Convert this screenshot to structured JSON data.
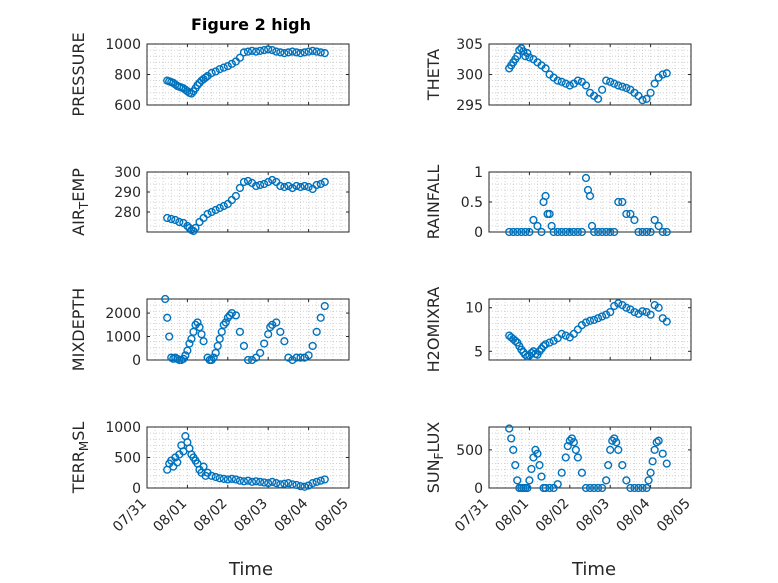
{
  "figure": {
    "title": "Figure 2 high",
    "xlabel": "Time",
    "x_ticks": [
      "07/31",
      "08/01",
      "08/02",
      "08/03",
      "08/04",
      "08/05"
    ],
    "marker_color": "#0072BD",
    "grid": "minor dotted"
  },
  "chart_data": [
    {
      "type": "scatter",
      "ylabel": "PRESSURE",
      "ylim": [
        600,
        1000
      ],
      "y_ticks": [
        "600",
        "800",
        "1000"
      ],
      "xlim": [
        0,
        5
      ],
      "series": [
        {
          "x": [
            0.5,
            0.55,
            0.6,
            0.65,
            0.7,
            0.75,
            0.8,
            0.85,
            0.9,
            0.95,
            1.0,
            1.05,
            1.1,
            1.15,
            1.2,
            1.25,
            1.3,
            1.35,
            1.4,
            1.45,
            1.5,
            1.6,
            1.7,
            1.8,
            1.9,
            2.0,
            2.1,
            2.2,
            2.3,
            2.4,
            2.5,
            2.6,
            2.7,
            2.8,
            2.9,
            3.0,
            3.1,
            3.2,
            3.3,
            3.4,
            3.5,
            3.6,
            3.7,
            3.8,
            3.9,
            4.0,
            4.1,
            4.2,
            4.3,
            4.4
          ],
          "y": [
            760,
            755,
            750,
            745,
            735,
            725,
            720,
            715,
            710,
            700,
            690,
            680,
            675,
            690,
            710,
            730,
            745,
            760,
            770,
            780,
            790,
            810,
            820,
            835,
            845,
            855,
            870,
            885,
            910,
            945,
            950,
            955,
            950,
            955,
            960,
            965,
            960,
            950,
            945,
            940,
            945,
            950,
            945,
            940,
            945,
            950,
            955,
            950,
            945,
            940
          ]
        }
      ]
    },
    {
      "type": "scatter",
      "ylabel": "THETA",
      "ylim": [
        295,
        305
      ],
      "y_ticks": [
        "295",
        "300",
        "305"
      ],
      "xlim": [
        0,
        5
      ],
      "series": [
        {
          "x": [
            0.5,
            0.55,
            0.6,
            0.65,
            0.7,
            0.75,
            0.8,
            0.85,
            0.9,
            0.95,
            1.0,
            1.1,
            1.2,
            1.3,
            1.4,
            1.5,
            1.6,
            1.7,
            1.8,
            1.9,
            2.0,
            2.1,
            2.2,
            2.3,
            2.4,
            2.5,
            2.6,
            2.7,
            2.8,
            2.9,
            3.0,
            3.1,
            3.2,
            3.3,
            3.4,
            3.5,
            3.6,
            3.7,
            3.8,
            3.9,
            4.0,
            4.1,
            4.2,
            4.3,
            4.4
          ],
          "y": [
            301,
            301.5,
            302,
            302.5,
            303,
            304,
            304.3,
            303.8,
            303,
            303.5,
            302.8,
            302.5,
            302,
            301.5,
            301,
            300,
            299.5,
            299,
            298.8,
            298.5,
            298.2,
            298.5,
            299,
            298.8,
            298.2,
            297,
            296.5,
            296,
            297.5,
            299,
            298.8,
            298.5,
            298.2,
            298,
            297.8,
            297.5,
            297,
            296.5,
            295.8,
            296,
            297,
            298.5,
            299.5,
            300,
            300.2
          ]
        }
      ]
    },
    {
      "type": "scatter",
      "ylabel": "AIR_TEMP",
      "ylim": [
        270,
        300
      ],
      "y_ticks": [
        "280",
        "290",
        "300"
      ],
      "xlim": [
        0,
        5
      ],
      "series": [
        {
          "x": [
            0.5,
            0.6,
            0.7,
            0.8,
            0.9,
            1.0,
            1.05,
            1.1,
            1.15,
            1.2,
            1.3,
            1.4,
            1.5,
            1.6,
            1.7,
            1.8,
            1.9,
            2.0,
            2.1,
            2.2,
            2.3,
            2.4,
            2.5,
            2.6,
            2.7,
            2.8,
            2.9,
            3.0,
            3.1,
            3.2,
            3.3,
            3.4,
            3.5,
            3.6,
            3.7,
            3.8,
            3.9,
            4.0,
            4.1,
            4.2,
            4.3,
            4.4
          ],
          "y": [
            277,
            276.5,
            276,
            275,
            274.5,
            273,
            272,
            271,
            270.5,
            272,
            275,
            277,
            279,
            280,
            281,
            282,
            283,
            284,
            286,
            288,
            292,
            295,
            295.5,
            294.5,
            293,
            293.5,
            294,
            295,
            296,
            295,
            293,
            292.5,
            293,
            292,
            293,
            292.5,
            293,
            292.5,
            291.5,
            293.5,
            294,
            295
          ]
        }
      ]
    },
    {
      "type": "scatter",
      "ylabel": "RAINFALL",
      "ylim": [
        0,
        1
      ],
      "y_ticks": [
        "0",
        "0.5",
        "1"
      ],
      "xlim": [
        0,
        5
      ],
      "series": [
        {
          "x": [
            0.5,
            0.6,
            0.7,
            0.8,
            0.9,
            1.0,
            1.1,
            1.2,
            1.3,
            1.35,
            1.4,
            1.45,
            1.5,
            1.55,
            1.6,
            1.7,
            1.8,
            1.9,
            2.0,
            2.1,
            2.2,
            2.3,
            2.4,
            2.45,
            2.5,
            2.55,
            2.6,
            2.7,
            2.8,
            2.9,
            3.0,
            3.1,
            3.2,
            3.3,
            3.4,
            3.5,
            3.6,
            3.7,
            3.8,
            3.9,
            4.0,
            4.1,
            4.2,
            4.3,
            4.4
          ],
          "y": [
            0,
            0,
            0,
            0,
            0,
            0,
            0.2,
            0.1,
            0,
            0.5,
            0.6,
            0.3,
            0.3,
            0.1,
            0,
            0,
            0,
            0,
            0,
            0,
            0,
            0,
            0.9,
            0.7,
            0.6,
            0.1,
            0,
            0,
            0,
            0,
            0,
            0,
            0.5,
            0.5,
            0.3,
            0.3,
            0.2,
            0,
            0,
            0,
            0,
            0.2,
            0.1,
            0,
            0
          ]
        }
      ]
    },
    {
      "type": "scatter",
      "ylabel": "MIXDEPTH",
      "ylim": [
        0,
        2600
      ],
      "y_ticks": [
        "0",
        "1000",
        "2000"
      ],
      "xlim": [
        0,
        5
      ],
      "series": [
        {
          "x": [
            0.45,
            0.5,
            0.55,
            0.6,
            0.65,
            0.7,
            0.75,
            0.8,
            0.85,
            0.9,
            0.95,
            1.0,
            1.05,
            1.1,
            1.15,
            1.2,
            1.25,
            1.3,
            1.35,
            1.4,
            1.5,
            1.55,
            1.6,
            1.65,
            1.7,
            1.75,
            1.8,
            1.85,
            1.9,
            1.95,
            2.0,
            2.05,
            2.1,
            2.2,
            2.3,
            2.4,
            2.5,
            2.6,
            2.7,
            2.8,
            2.9,
            3.0,
            3.05,
            3.1,
            3.2,
            3.3,
            3.4,
            3.5,
            3.6,
            3.7,
            3.8,
            3.9,
            4.0,
            4.1,
            4.2,
            4.3,
            4.4
          ],
          "y": [
            2600,
            1800,
            1000,
            100,
            50,
            100,
            50,
            0,
            0,
            50,
            200,
            400,
            700,
            900,
            1200,
            1500,
            1600,
            1400,
            1100,
            800,
            100,
            0,
            0,
            100,
            300,
            600,
            900,
            1200,
            1500,
            1600,
            1800,
            1900,
            2000,
            1900,
            1200,
            600,
            0,
            0,
            100,
            300,
            700,
            1100,
            1400,
            1500,
            1600,
            1200,
            800,
            100,
            0,
            100,
            100,
            100,
            200,
            600,
            1200,
            1800,
            2300
          ]
        }
      ]
    },
    {
      "type": "scatter",
      "ylabel": "H2OMIXRA",
      "ylim": [
        4,
        11
      ],
      "y_ticks": [
        "5",
        "10"
      ],
      "xlim": [
        0,
        5
      ],
      "series": [
        {
          "x": [
            0.5,
            0.55,
            0.6,
            0.65,
            0.7,
            0.75,
            0.8,
            0.85,
            0.9,
            0.95,
            1.0,
            1.05,
            1.1,
            1.15,
            1.2,
            1.25,
            1.3,
            1.35,
            1.4,
            1.5,
            1.6,
            1.7,
            1.8,
            1.9,
            2.0,
            2.1,
            2.2,
            2.3,
            2.4,
            2.5,
            2.6,
            2.7,
            2.8,
            2.9,
            3.0,
            3.1,
            3.2,
            3.3,
            3.4,
            3.5,
            3.6,
            3.7,
            3.8,
            3.9,
            4.0,
            4.1,
            4.2,
            4.3,
            4.4
          ],
          "y": [
            6.8,
            6.6,
            6.4,
            6.2,
            6.0,
            5.6,
            5.2,
            4.9,
            4.6,
            4.4,
            4.5,
            4.8,
            5.0,
            4.7,
            4.6,
            5.0,
            5.3,
            5.6,
            5.8,
            6.0,
            6.2,
            6.5,
            7.0,
            6.8,
            6.6,
            7.0,
            7.5,
            8.0,
            8.3,
            8.5,
            8.6,
            8.8,
            9.0,
            9.2,
            9.5,
            10.2,
            10.5,
            10.3,
            10.0,
            9.8,
            9.5,
            9.3,
            9.6,
            9.5,
            9.2,
            10.3,
            10.0,
            8.8,
            8.4
          ]
        }
      ]
    },
    {
      "type": "scatter",
      "ylabel": "TERR_MSL",
      "ylim": [
        0,
        1000
      ],
      "y_ticks": [
        "0",
        "500",
        "1000"
      ],
      "xlim": [
        0,
        5
      ],
      "series": [
        {
          "x": [
            0.5,
            0.55,
            0.6,
            0.65,
            0.7,
            0.75,
            0.8,
            0.85,
            0.9,
            0.95,
            1.0,
            1.05,
            1.1,
            1.15,
            1.2,
            1.25,
            1.3,
            1.35,
            1.4,
            1.45,
            1.5,
            1.6,
            1.7,
            1.8,
            1.9,
            2.0,
            2.1,
            2.2,
            2.3,
            2.4,
            2.5,
            2.6,
            2.7,
            2.8,
            2.9,
            3.0,
            3.1,
            3.2,
            3.3,
            3.4,
            3.5,
            3.6,
            3.7,
            3.8,
            3.9,
            4.0,
            4.1,
            4.2,
            4.3,
            4.4
          ],
          "y": [
            300,
            400,
            450,
            350,
            500,
            420,
            550,
            700,
            600,
            850,
            750,
            650,
            550,
            500,
            450,
            400,
            300,
            250,
            350,
            200,
            250,
            200,
            180,
            160,
            150,
            140,
            150,
            140,
            120,
            110,
            120,
            100,
            110,
            100,
            90,
            80,
            100,
            80,
            60,
            70,
            80,
            60,
            50,
            30,
            20,
            40,
            80,
            100,
            120,
            140
          ]
        }
      ]
    },
    {
      "type": "scatter",
      "ylabel": "SUN_FLUX",
      "ylim": [
        0,
        800
      ],
      "y_ticks": [
        "0",
        "500"
      ],
      "xlim": [
        0,
        5
      ],
      "series": [
        {
          "x": [
            0.5,
            0.55,
            0.6,
            0.65,
            0.7,
            0.75,
            0.8,
            0.85,
            0.9,
            0.95,
            1.0,
            1.05,
            1.1,
            1.15,
            1.2,
            1.25,
            1.3,
            1.35,
            1.4,
            1.5,
            1.6,
            1.7,
            1.8,
            1.9,
            1.95,
            2.0,
            2.05,
            2.1,
            2.15,
            2.2,
            2.3,
            2.4,
            2.5,
            2.6,
            2.7,
            2.8,
            2.9,
            2.95,
            3.0,
            3.05,
            3.1,
            3.15,
            3.2,
            3.3,
            3.4,
            3.5,
            3.6,
            3.7,
            3.8,
            3.9,
            3.95,
            4.0,
            4.05,
            4.1,
            4.15,
            4.2,
            4.3,
            4.4
          ],
          "y": [
            780,
            650,
            500,
            300,
            100,
            0,
            0,
            0,
            0,
            0,
            100,
            250,
            400,
            500,
            450,
            300,
            150,
            0,
            0,
            0,
            0,
            50,
            200,
            400,
            550,
            620,
            650,
            600,
            500,
            400,
            200,
            0,
            0,
            0,
            0,
            0,
            100,
            300,
            500,
            620,
            650,
            600,
            500,
            300,
            100,
            0,
            0,
            0,
            0,
            0,
            100,
            200,
            350,
            500,
            600,
            620,
            450,
            320
          ]
        }
      ]
    }
  ]
}
